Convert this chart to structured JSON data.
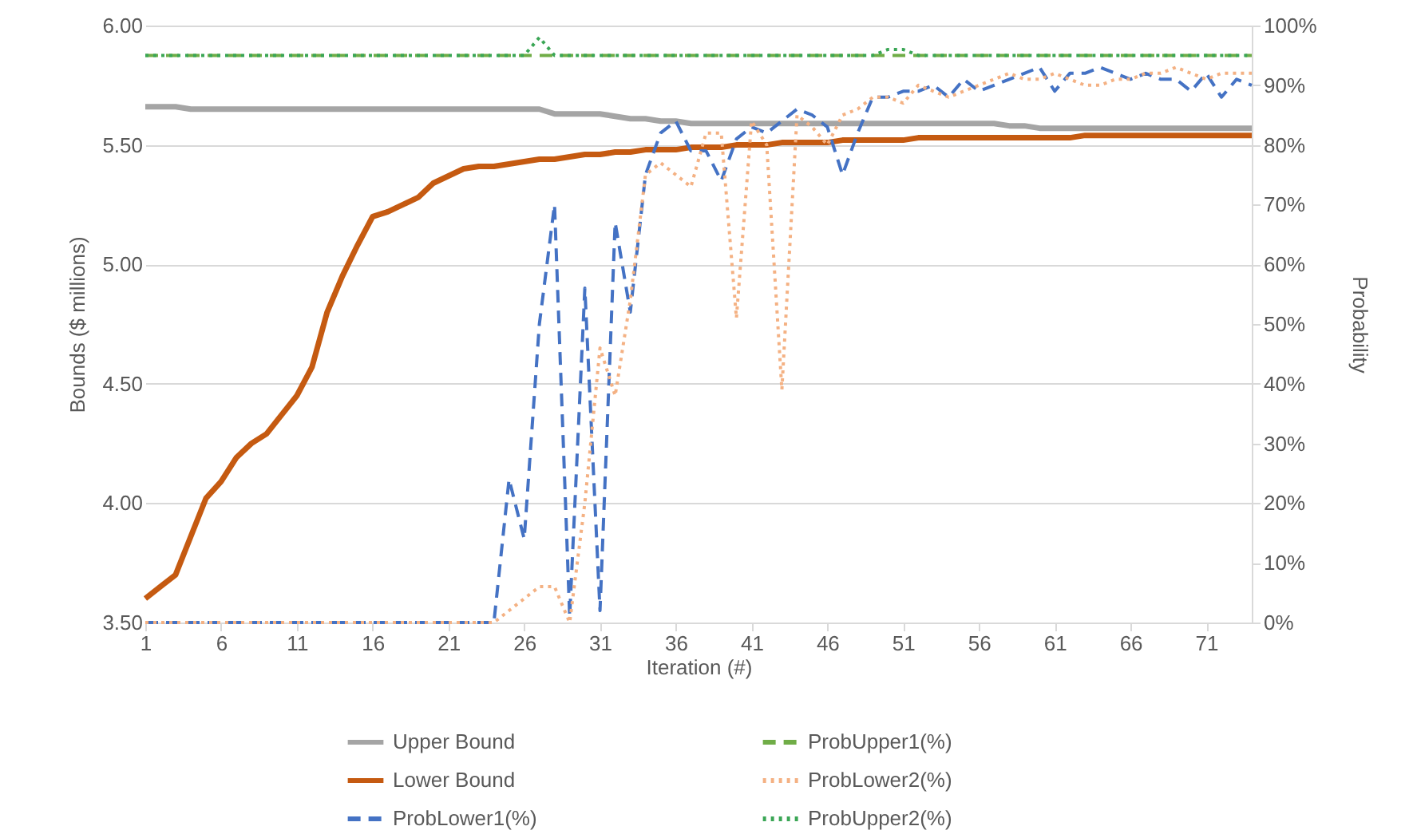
{
  "chart_data": {
    "type": "line",
    "xlabel": "Iteration (#)",
    "ylabel": "Bounds ($ millions)",
    "y2label": "Probability",
    "x": [
      1,
      2,
      3,
      4,
      5,
      6,
      7,
      8,
      9,
      10,
      11,
      12,
      13,
      14,
      15,
      16,
      17,
      18,
      19,
      20,
      21,
      22,
      23,
      24,
      25,
      26,
      27,
      28,
      29,
      30,
      31,
      32,
      33,
      34,
      35,
      36,
      37,
      38,
      39,
      40,
      41,
      42,
      43,
      44,
      45,
      46,
      47,
      48,
      49,
      50,
      51,
      52,
      53,
      54,
      55,
      56,
      57,
      58,
      59,
      60,
      61,
      62,
      63,
      64,
      65,
      66,
      67,
      68,
      69,
      70,
      71,
      72,
      73,
      74
    ],
    "xlim": [
      1,
      74
    ],
    "xticks": [
      1,
      6,
      11,
      16,
      21,
      26,
      31,
      36,
      41,
      46,
      51,
      56,
      61,
      66,
      71
    ],
    "ylim": [
      3.5,
      6
    ],
    "yticks": [
      {
        "value": 3.5,
        "label": "3.50"
      },
      {
        "value": 4,
        "label": "4.00"
      },
      {
        "value": 4.5,
        "label": "4.50"
      },
      {
        "value": 5,
        "label": "5.00"
      },
      {
        "value": 5.5,
        "label": "5.50"
      },
      {
        "value": 6,
        "label": "6.00"
      }
    ],
    "y2lim": [
      0,
      100
    ],
    "y2ticks": [
      {
        "value": 0,
        "label": "0%"
      },
      {
        "value": 10,
        "label": "10%"
      },
      {
        "value": 20,
        "label": "20%"
      },
      {
        "value": 30,
        "label": "30%"
      },
      {
        "value": 40,
        "label": "40%"
      },
      {
        "value": 50,
        "label": "50%"
      },
      {
        "value": 60,
        "label": "60%"
      },
      {
        "value": 70,
        "label": "70%"
      },
      {
        "value": 80,
        "label": "80%"
      },
      {
        "value": 90,
        "label": "90%"
      },
      {
        "value": 100,
        "label": "100%"
      }
    ],
    "grid": "y",
    "legend": "bottom",
    "series": [
      {
        "name": "Upper Bound",
        "color": "#a5a5a5",
        "line_style": "solid",
        "values": [
          5.66,
          5.66,
          5.66,
          5.65,
          5.65,
          5.65,
          5.65,
          5.65,
          5.65,
          5.65,
          5.65,
          5.65,
          5.65,
          5.65,
          5.65,
          5.65,
          5.65,
          5.65,
          5.65,
          5.65,
          5.65,
          5.65,
          5.65,
          5.65,
          5.65,
          5.65,
          5.65,
          5.63,
          5.63,
          5.63,
          5.63,
          5.62,
          5.61,
          5.61,
          5.6,
          5.6,
          5.59,
          5.59,
          5.59,
          5.59,
          5.59,
          5.59,
          5.59,
          5.59,
          5.59,
          5.59,
          5.59,
          5.59,
          5.59,
          5.59,
          5.59,
          5.59,
          5.59,
          5.59,
          5.59,
          5.59,
          5.59,
          5.58,
          5.58,
          5.57,
          5.57,
          5.57,
          5.57,
          5.57,
          5.57,
          5.57,
          5.57,
          5.57,
          5.57,
          5.57,
          5.57,
          5.57,
          5.57,
          5.57
        ]
      },
      {
        "name": "Lower Bound",
        "color": "#c55a11",
        "line_style": "solid",
        "values": [
          3.6,
          3.65,
          3.7,
          3.86,
          4.02,
          4.09,
          4.19,
          4.25,
          4.29,
          4.37,
          4.45,
          4.57,
          4.8,
          4.95,
          5.08,
          5.2,
          5.22,
          5.25,
          5.28,
          5.34,
          5.37,
          5.4,
          5.41,
          5.41,
          5.42,
          5.43,
          5.44,
          5.44,
          5.45,
          5.46,
          5.46,
          5.47,
          5.47,
          5.48,
          5.48,
          5.48,
          5.49,
          5.49,
          5.49,
          5.5,
          5.5,
          5.5,
          5.51,
          5.51,
          5.51,
          5.51,
          5.52,
          5.52,
          5.52,
          5.52,
          5.52,
          5.53,
          5.53,
          5.53,
          5.53,
          5.53,
          5.53,
          5.53,
          5.53,
          5.53,
          5.53,
          5.53,
          5.54,
          5.54,
          5.54,
          5.54,
          5.54,
          5.54,
          5.54,
          5.54,
          5.54,
          5.54,
          5.54,
          5.54
        ]
      },
      {
        "name": "ProbLower1(%)",
        "color": "#4472c4",
        "line_style": "dashed",
        "axis": "y2",
        "values": [
          0,
          0,
          0,
          0,
          0,
          0,
          0,
          0,
          0,
          0,
          0,
          0,
          0,
          0,
          0,
          0,
          0,
          0,
          0,
          0,
          0,
          0,
          0,
          0,
          24,
          14,
          50,
          70,
          1,
          56,
          2,
          67,
          52,
          75,
          82,
          84,
          79,
          79,
          74,
          81,
          83,
          82,
          84,
          86,
          85,
          83,
          75,
          82,
          88,
          88,
          89,
          89,
          90,
          88,
          91,
          89,
          90,
          91,
          92,
          93,
          89,
          92,
          92,
          93,
          92,
          91,
          92,
          91,
          91,
          89,
          92,
          88,
          91,
          90
        ]
      },
      {
        "name": "ProbUpper1(%)",
        "color": "#70ad47",
        "line_style": "dashed",
        "axis": "y2",
        "values": [
          95,
          95,
          95,
          95,
          95,
          95,
          95,
          95,
          95,
          95,
          95,
          95,
          95,
          95,
          95,
          95,
          95,
          95,
          95,
          95,
          95,
          95,
          95,
          95,
          95,
          95,
          95,
          95,
          95,
          95,
          95,
          95,
          95,
          95,
          95,
          95,
          95,
          95,
          95,
          95,
          95,
          95,
          95,
          95,
          95,
          95,
          95,
          95,
          95,
          95,
          95,
          95,
          95,
          95,
          95,
          95,
          95,
          95,
          95,
          95,
          95,
          95,
          95,
          95,
          95,
          95,
          95,
          95,
          95,
          95,
          95,
          95,
          95,
          95
        ]
      },
      {
        "name": "ProbLower2(%)",
        "color": "#f4b183",
        "line_style": "dotted",
        "axis": "y2",
        "values": [
          0,
          0,
          0,
          0,
          0,
          0,
          0,
          0,
          0,
          0,
          0,
          0,
          0,
          0,
          0,
          0,
          0,
          0,
          0,
          0,
          0,
          0,
          0,
          0,
          2,
          4,
          6,
          6,
          0,
          20,
          46,
          38,
          54,
          75,
          77,
          75,
          73,
          82,
          82,
          51,
          84,
          80,
          39,
          85,
          83,
          80,
          85,
          86,
          88,
          88,
          87,
          90,
          89,
          88,
          89,
          90,
          91,
          92,
          91,
          91,
          92,
          91,
          90,
          90,
          91,
          91,
          92,
          92,
          93,
          92,
          91,
          92,
          92,
          92
        ]
      },
      {
        "name": "ProbUpper2(%)",
        "color": "#3aa655",
        "line_style": "dotted",
        "axis": "y2",
        "values": [
          95,
          95,
          95,
          95,
          95,
          95,
          95,
          95,
          95,
          95,
          95,
          95,
          95,
          95,
          95,
          95,
          95,
          95,
          95,
          95,
          95,
          95,
          95,
          95,
          95,
          95,
          98,
          95,
          95,
          95,
          95,
          95,
          95,
          95,
          95,
          95,
          95,
          95,
          95,
          95,
          95,
          95,
          95,
          95,
          95,
          95,
          95,
          95,
          95,
          96,
          96,
          95,
          95,
          95,
          95,
          95,
          95,
          95,
          95,
          95,
          95,
          95,
          95,
          95,
          95,
          95,
          95,
          95,
          95,
          95,
          95,
          95,
          95,
          95
        ]
      }
    ]
  }
}
